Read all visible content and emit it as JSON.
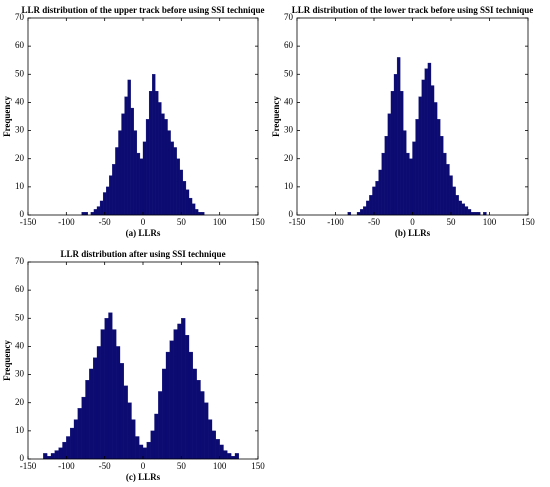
{
  "chart_data": [
    {
      "type": "histogram",
      "title": "LLR distribution of the upper track before using SSI technique",
      "xlabel": "(a) LLRs",
      "ylabel": "Frequency",
      "color": "#0b0b72",
      "bins": [
        -80,
        -76,
        -72,
        -68,
        -64,
        -60,
        -56,
        -52,
        -48,
        -44,
        -40,
        -36,
        -32,
        -28,
        -24,
        -20,
        -16,
        -12,
        -8,
        -4,
        0,
        4,
        8,
        12,
        16,
        20,
        24,
        28,
        32,
        36,
        40,
        44,
        48,
        52,
        56,
        60,
        64,
        68,
        72,
        76,
        80
      ],
      "values": [
        1,
        1,
        0,
        1,
        2,
        3,
        5,
        8,
        10,
        14,
        18,
        24,
        30,
        36,
        42,
        48,
        38,
        30,
        22,
        20,
        26,
        34,
        44,
        50,
        44,
        40,
        36,
        34,
        30,
        26,
        24,
        20,
        16,
        12,
        9,
        6,
        4,
        2,
        1,
        1
      ],
      "xlim": [
        -150,
        150
      ],
      "xticks": [
        -150,
        -100,
        -50,
        0,
        50,
        100,
        150
      ],
      "ylim": [
        0,
        70
      ],
      "yticks": [
        0,
        10,
        20,
        30,
        40,
        50,
        60,
        70
      ]
    },
    {
      "type": "histogram",
      "title": "LLR distribution of the lower track before using SSI technique",
      "xlabel": "(b) LLRs",
      "ylabel": "Frequency",
      "color": "#0b0b72",
      "bins": [
        -84,
        -80,
        -76,
        -72,
        -68,
        -64,
        -60,
        -56,
        -52,
        -48,
        -44,
        -40,
        -36,
        -32,
        -28,
        -24,
        -20,
        -16,
        -12,
        -8,
        -4,
        0,
        4,
        8,
        12,
        16,
        20,
        24,
        28,
        32,
        36,
        40,
        44,
        48,
        52,
        56,
        60,
        64,
        68,
        72,
        76,
        80,
        84,
        88,
        92,
        96
      ],
      "values": [
        1,
        0,
        0,
        1,
        2,
        3,
        5,
        7,
        10,
        12,
        16,
        22,
        28,
        36,
        44,
        50,
        56,
        44,
        30,
        22,
        20,
        26,
        34,
        42,
        48,
        52,
        54,
        46,
        40,
        34,
        28,
        22,
        18,
        14,
        10,
        7,
        5,
        4,
        3,
        2,
        1,
        1,
        1,
        0,
        1
      ],
      "xlim": [
        -150,
        150
      ],
      "xticks": [
        -150,
        -100,
        -50,
        0,
        50,
        100,
        150
      ],
      "ylim": [
        0,
        70
      ],
      "yticks": [
        0,
        10,
        20,
        30,
        40,
        50,
        60,
        70
      ]
    },
    {
      "type": "histogram",
      "title": "LLR distribution after using SSI technique",
      "xlabel": "(c) LLRs",
      "ylabel": "Frequency",
      "color": "#0b0b72",
      "bins": [
        -130,
        -125,
        -120,
        -115,
        -110,
        -105,
        -100,
        -95,
        -90,
        -85,
        -80,
        -75,
        -70,
        -65,
        -60,
        -55,
        -50,
        -45,
        -40,
        -35,
        -30,
        -25,
        -20,
        -15,
        -10,
        -5,
        0,
        5,
        10,
        15,
        20,
        25,
        30,
        35,
        40,
        45,
        50,
        55,
        60,
        65,
        70,
        75,
        80,
        85,
        90,
        95,
        100,
        105,
        110,
        115,
        120,
        125
      ],
      "values": [
        2,
        1,
        2,
        3,
        4,
        6,
        8,
        11,
        14,
        18,
        22,
        28,
        32,
        36,
        40,
        46,
        50,
        52,
        46,
        40,
        34,
        26,
        20,
        14,
        8,
        5,
        4,
        6,
        10,
        16,
        24,
        32,
        38,
        42,
        46,
        48,
        50,
        44,
        38,
        32,
        28,
        24,
        20,
        14,
        10,
        7,
        5,
        3,
        2,
        1,
        2
      ],
      "xlim": [
        -150,
        150
      ],
      "xticks": [
        -150,
        -100,
        -50,
        0,
        50,
        100,
        150
      ],
      "ylim": [
        0,
        70
      ],
      "yticks": [
        0,
        10,
        20,
        30,
        40,
        50,
        60,
        70
      ]
    }
  ]
}
